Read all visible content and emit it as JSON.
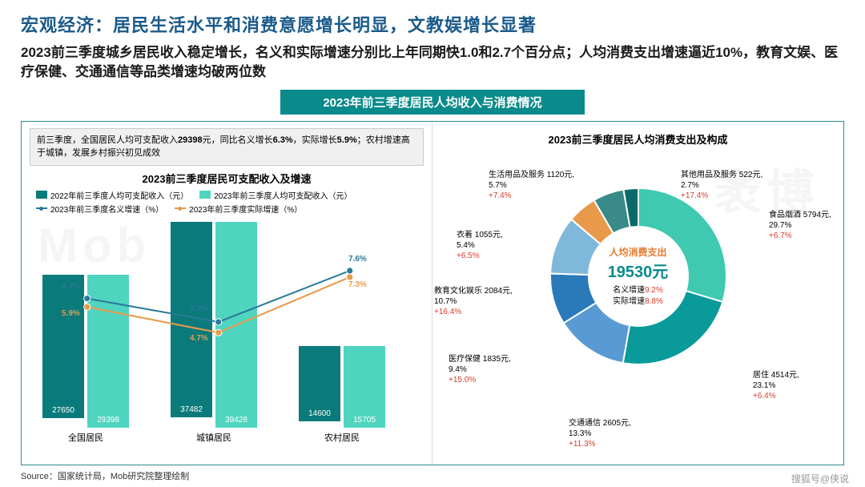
{
  "title": "宏观经济：居民生活水平和消费意愿增长明显，文教娱增长显著",
  "subtitle": "2023前三季度城乡居民收入稳定增长，名义和实际增速分别比上年同期快1.0和2.7个百分点；人均消费支出增速逼近10%，教育文娱、医疗保健、交通通信等品类增速均破两位数",
  "banner": "2023年前三季度居民人均收入与消费情况",
  "note_p1": "前三季度，全国居民人均可支配收入",
  "note_b1": "29398",
  "note_p2": "元，同比名义增长",
  "note_b2": "6.3%",
  "note_p3": "，实际增长",
  "note_b3": "5.9%",
  "note_p4": "；农村增速高于城镇，发展乡村振兴初见成效",
  "bar_chart": {
    "title": "2023前三季度居民可支配收入及增速",
    "legend": {
      "s1": "2022年前三季度人均可支配收入（元）",
      "s2": "2023年前三季度人均可支配收入（元）",
      "l1": "2023年前三季度名义增速（%）",
      "l2": "2023年前三季度实际增速（%）"
    },
    "colors": {
      "s1": "#0a7a7a",
      "s2": "#4fd4bf",
      "l1": "#2a7a9a",
      "l2": "#e89a4a"
    },
    "ymax": 40000,
    "categories": [
      "全国居民",
      "城镇居民",
      "农村居民"
    ],
    "s1": [
      27650,
      37482,
      14600
    ],
    "s2": [
      29398,
      39428,
      15705
    ],
    "nominal": [
      6.3,
      5.2,
      7.6
    ],
    "real": [
      5.9,
      4.7,
      7.3
    ]
  },
  "donut": {
    "title": "2023前三季度居民人均消费支出及构成",
    "center_title": "人均消费支出",
    "center_value": "19530元",
    "center_sub1": "名义增速",
    "center_sub1v": "9.2%",
    "center_sub2": "实际增速",
    "center_sub2v": "8.8%",
    "slices": [
      {
        "name": "食品烟酒",
        "amount": "5794元,",
        "pct": "29.7%",
        "growth": "+6.7%",
        "color": "#3ec9b0",
        "start": 0
      },
      {
        "name": "居住",
        "amount": "4514元,",
        "pct": "23.1%",
        "growth": "+6.4%",
        "color": "#0a9a9a",
        "start": 106.9
      },
      {
        "name": "交通通信",
        "amount": "2605元,",
        "pct": "13.3%",
        "growth": "+11.3%",
        "color": "#5a9ad4",
        "start": 190.1
      },
      {
        "name": "医疗保健",
        "amount": "1835元,",
        "pct": "9.4%",
        "growth": "+15.0%",
        "color": "#2a7aba",
        "start": 238.0
      },
      {
        "name": "教育文化娱乐",
        "amount": "2084元,",
        "pct": "10.7%",
        "growth": "+16.4%",
        "color": "#7fb8da",
        "start": 271.8
      },
      {
        "name": "衣着",
        "amount": "1055元,",
        "pct": "5.4%",
        "growth": "+6.5%",
        "color": "#e89a4a",
        "start": 310.4
      },
      {
        "name": "生活用品及服务",
        "amount": "1120元,",
        "pct": "5.7%",
        "growth": "+7.4%",
        "color": "#3a8a8a",
        "start": 329.8
      },
      {
        "name": "其他用品及服务",
        "amount": "522元,",
        "pct": "2.7%",
        "growth": "+17.4%",
        "color": "#0a6a6a",
        "start": 350.3
      }
    ]
  },
  "source": "Source：国家统计局，Mob研究院整理绘制",
  "footer": "搜狐号@侠说"
}
